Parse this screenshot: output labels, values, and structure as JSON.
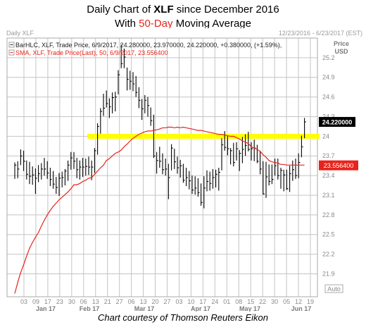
{
  "header": {
    "title_prefix": "Daily Chart of ",
    "title_ticker": "XLF",
    "title_suffix": " since December 2016",
    "subtitle_prefix": "With ",
    "subtitle_accent": "50-Day",
    "subtitle_suffix": " Moving Average"
  },
  "caption": "Chart courtesy of Thomson Reuters Eikon",
  "colors": {
    "price_bars": "#000000",
    "sma": "#e8231b",
    "resistance": "#ffff00",
    "last_price_tag": "#000000",
    "sma_tag": "#e8231b",
    "grid": "#c4c4c4"
  },
  "chart_data": {
    "type": "line",
    "header_left": "Daily XLF",
    "header_right": "12/23/2016 - 6/23/2017 (EST)",
    "legend": [
      {
        "text": "BarHLC, XLF, Trade Price, 6/9/2017, 24.280000, 23.970000, 24.220000, +0.380000, (+1.59%),",
        "color": "#222222"
      },
      {
        "text": "SMA, XLF, Trade Price(Last),  50, 6/9/2017, 23.556400",
        "color": "#e8231b"
      }
    ],
    "y_axis_title": [
      "Price",
      "USD"
    ],
    "ylim": [
      21.55,
      25.5
    ],
    "y_ticks": [
      "25.2",
      "24.9",
      "24.6",
      "24.3",
      "24",
      "23.7",
      "23.4",
      "23.1",
      "22.8",
      "22.5",
      "22.2",
      "21.9"
    ],
    "y_tick_values": [
      25.2,
      24.9,
      24.6,
      24.3,
      24.0,
      23.7,
      23.4,
      23.1,
      22.8,
      22.5,
      22.2,
      21.9
    ],
    "x_day_ticks": [
      "03",
      "09",
      "17",
      "23",
      "30",
      "06",
      "13",
      "21",
      "27",
      "06",
      "13",
      "20",
      "27",
      "03",
      "10",
      "17",
      "24",
      "01",
      "08",
      "15",
      "22",
      "30",
      "05",
      "12",
      "19"
    ],
    "x_month_labels": [
      "Jan 17",
      "Feb 17",
      "Mar 17",
      "Apr 17",
      "May 17",
      "Jun 17"
    ],
    "axis_auto_label": "Auto",
    "last_price_label": "24.220000",
    "last_price_value": 24.22,
    "sma_label": "23.556400",
    "sma_value": 23.5564,
    "resistance_level": 24.0,
    "series": [
      {
        "name": "BarHLC, XLF",
        "high": [
          23.6,
          23.62,
          23.8,
          23.78,
          23.63,
          23.61,
          23.54,
          23.51,
          23.56,
          23.59,
          23.67,
          23.62,
          23.52,
          23.47,
          23.38,
          23.44,
          23.46,
          23.5,
          23.63,
          23.76,
          23.76,
          23.67,
          23.63,
          23.67,
          23.66,
          23.69,
          23.63,
          23.82,
          24.2,
          24.43,
          24.65,
          24.7,
          24.58,
          24.67,
          24.68,
          25.01,
          25.4,
          25.34,
          25.05,
          25.0,
          24.98,
          24.92,
          24.75,
          24.57,
          24.63,
          24.6,
          24.44,
          24.33,
          23.76,
          23.84,
          23.74,
          23.66,
          23.58,
          23.88,
          23.81,
          23.69,
          23.64,
          23.58,
          23.52,
          23.47,
          23.4,
          23.39,
          23.36,
          23.28,
          23.39,
          23.48,
          23.46,
          23.5,
          23.49,
          23.52,
          23.97,
          24.08,
          24.01,
          23.82,
          23.9,
          23.91,
          23.79,
          23.99,
          24.03,
          24.07,
          23.91,
          23.95,
          23.87,
          23.78,
          23.62,
          23.61,
          23.57,
          23.57,
          23.66,
          23.66,
          23.52,
          23.49,
          23.49,
          23.55,
          23.63,
          23.66,
          23.74,
          24.01,
          24.28
        ],
        "low": [
          23.35,
          23.36,
          23.56,
          23.47,
          23.34,
          23.27,
          23.26,
          23.12,
          23.3,
          23.34,
          23.4,
          23.35,
          23.24,
          23.2,
          23.12,
          23.09,
          23.22,
          23.25,
          23.32,
          23.49,
          23.5,
          23.36,
          23.34,
          23.38,
          23.4,
          23.41,
          23.33,
          23.44,
          23.72,
          24.04,
          24.31,
          24.44,
          24.28,
          24.35,
          24.38,
          24.64,
          25.04,
          25.04,
          24.7,
          24.71,
          24.69,
          24.6,
          24.43,
          24.25,
          24.35,
          24.3,
          24.16,
          23.67,
          23.43,
          23.52,
          23.42,
          23.4,
          23.04,
          23.48,
          23.5,
          23.43,
          23.37,
          23.29,
          23.24,
          23.19,
          23.12,
          23.11,
          23.08,
          22.94,
          22.9,
          23.16,
          23.17,
          23.2,
          23.22,
          23.17,
          23.48,
          23.78,
          23.71,
          23.57,
          23.54,
          23.63,
          23.47,
          23.59,
          23.7,
          23.77,
          23.63,
          23.62,
          23.59,
          23.42,
          23.11,
          23.06,
          23.25,
          23.27,
          23.4,
          23.34,
          23.2,
          23.16,
          23.18,
          23.15,
          23.32,
          23.35,
          23.36,
          23.68,
          23.97
        ],
        "close": [
          23.56,
          23.5,
          23.7,
          23.62,
          23.42,
          23.39,
          23.41,
          23.36,
          23.43,
          23.5,
          23.5,
          23.44,
          23.34,
          23.27,
          23.22,
          23.36,
          23.37,
          23.47,
          23.56,
          23.67,
          23.62,
          23.49,
          23.53,
          23.53,
          23.54,
          23.53,
          23.53,
          23.78,
          24.15,
          24.38,
          24.43,
          24.5,
          24.45,
          24.59,
          24.6,
          24.94,
          25.11,
          25.21,
          24.87,
          24.84,
          24.8,
          24.67,
          24.55,
          24.42,
          24.55,
          24.47,
          24.24,
          23.7,
          23.63,
          23.62,
          23.49,
          23.5,
          23.37,
          23.82,
          23.61,
          23.52,
          23.55,
          23.33,
          23.37,
          23.32,
          23.18,
          23.21,
          23.14,
          22.99,
          23.21,
          23.31,
          23.28,
          23.37,
          23.42,
          23.45,
          23.87,
          23.83,
          23.81,
          23.78,
          23.6,
          23.81,
          23.74,
          23.8,
          23.86,
          23.8,
          23.81,
          23.82,
          23.62,
          23.5,
          23.12,
          23.38,
          23.31,
          23.34,
          23.55,
          23.4,
          23.48,
          23.41,
          23.2,
          23.43,
          23.49,
          23.4,
          23.6,
          23.84,
          24.22
        ]
      },
      {
        "name": "SMA, XLF, Trade Price(Last), 50",
        "values": [
          21.6,
          21.77,
          21.92,
          22.04,
          22.17,
          22.29,
          22.38,
          22.46,
          22.53,
          22.63,
          22.72,
          22.8,
          22.87,
          22.93,
          22.98,
          23.03,
          23.07,
          23.11,
          23.15,
          23.2,
          23.26,
          23.26,
          23.28,
          23.31,
          23.33,
          23.36,
          23.37,
          23.42,
          23.47,
          23.52,
          23.56,
          23.63,
          23.66,
          23.7,
          23.74,
          23.76,
          23.79,
          23.84,
          23.88,
          23.93,
          23.97,
          24.0,
          24.03,
          24.05,
          24.07,
          24.08,
          24.08,
          24.09,
          24.1,
          24.11,
          24.13,
          24.13,
          24.14,
          24.14,
          24.13,
          24.14,
          24.13,
          24.14,
          24.13,
          24.12,
          24.11,
          24.1,
          24.09,
          24.09,
          24.08,
          24.07,
          24.06,
          24.05,
          24.04,
          24.03,
          24.03,
          24.02,
          24.01,
          24.0,
          24.0,
          23.98,
          23.96,
          23.93,
          23.91,
          23.89,
          23.84,
          23.82,
          23.8,
          23.77,
          23.72,
          23.68,
          23.63,
          23.61,
          23.6,
          23.59,
          23.57,
          23.57,
          23.56,
          23.56,
          23.56,
          23.56,
          23.56,
          23.56,
          23.56
        ]
      }
    ],
    "grid": true
  }
}
